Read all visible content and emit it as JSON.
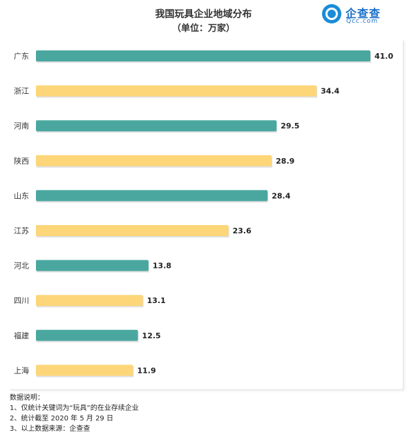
{
  "chart_data": {
    "type": "bar",
    "orientation": "horizontal",
    "title": "我国玩具企业地域分布",
    "subtitle": "（单位：万家）",
    "categories": [
      "广东",
      "浙江",
      "河南",
      "陕西",
      "山东",
      "江苏",
      "河北",
      "四川",
      "福建",
      "上海"
    ],
    "values": [
      41.0,
      34.4,
      29.5,
      28.9,
      28.4,
      23.6,
      13.8,
      13.1,
      12.5,
      11.9
    ],
    "value_labels": [
      "41.0",
      "34.4",
      "29.5",
      "28.9",
      "28.4",
      "23.6",
      "13.8",
      "13.1",
      "12.5",
      "11.9"
    ],
    "colors": [
      "#4aa79f",
      "#fdd679"
    ],
    "xlim": [
      0,
      41.0
    ],
    "grid": false,
    "legend": "none"
  },
  "logo": {
    "name": "企查查",
    "domain": "Qcc.com"
  },
  "notes": {
    "heading": "数据说明：",
    "lines": [
      "1、仅统计关键词为“玩具”的在业存续企业",
      "2、统计截至 2020 年 5 月 29 日",
      "3、以上数据来源：企查查"
    ]
  }
}
